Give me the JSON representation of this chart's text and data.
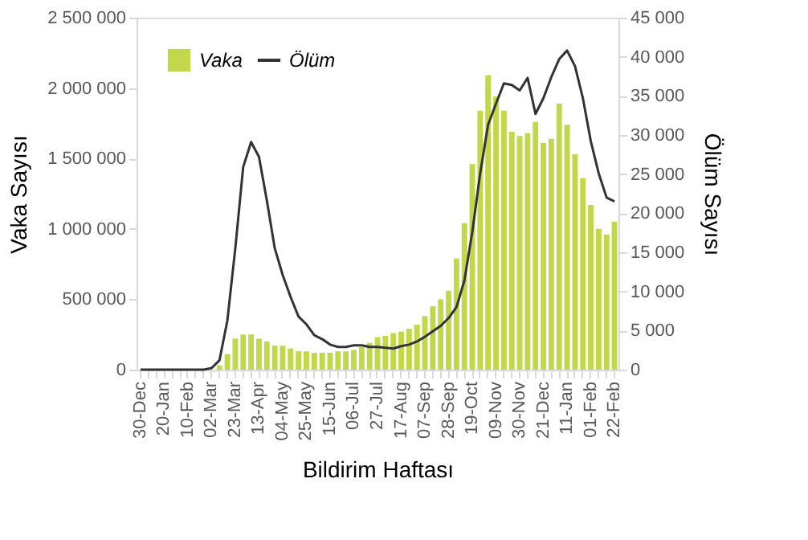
{
  "chart_data": {
    "type": "bar",
    "xlabel": "Bildirim Haftası",
    "ylabel": "Vaka Sayısı",
    "y2label": "Ölüm Sayısı",
    "categories": [
      "30-Dec",
      null,
      null,
      "20-Jan",
      null,
      null,
      "10-Feb",
      null,
      null,
      "02-Mar",
      null,
      null,
      "23-Mar",
      null,
      null,
      "13-Apr",
      null,
      null,
      "04-May",
      null,
      null,
      "25-May",
      null,
      null,
      "15-Jun",
      null,
      null,
      "06-Jul",
      null,
      null,
      "27-Jul",
      null,
      null,
      "17-Aug",
      null,
      null,
      "07-Sep",
      null,
      null,
      "28-Sep",
      null,
      null,
      "19-Oct",
      null,
      null,
      "09-Nov",
      null,
      null,
      "30-Nov",
      null,
      null,
      "21-Dec",
      null,
      null,
      "11-Jan",
      null,
      null,
      "01-Feb",
      null,
      null,
      "22-Feb"
    ],
    "series": [
      {
        "name": "Vaka",
        "color": "#c2d84a",
        "values": [
          0,
          0,
          0,
          0,
          0,
          0,
          0,
          0,
          0,
          0,
          30000,
          110000,
          220000,
          250000,
          250000,
          220000,
          200000,
          170000,
          170000,
          150000,
          130000,
          130000,
          120000,
          120000,
          120000,
          130000,
          130000,
          140000,
          160000,
          190000,
          230000,
          240000,
          260000,
          270000,
          290000,
          320000,
          380000,
          450000,
          500000,
          560000,
          790000,
          1040000,
          1460000,
          1840000,
          2090000,
          1940000,
          1840000,
          1690000,
          1660000,
          1680000,
          1760000,
          1610000,
          1640000,
          1890000,
          1740000,
          1530000,
          1360000,
          1170000,
          1000000,
          960000,
          1050000
        ]
      },
      {
        "name": "Ölüm",
        "type": "line",
        "axis": "y2",
        "color": "#333333",
        "values": [
          0,
          0,
          0,
          0,
          0,
          0,
          0,
          0,
          0,
          200,
          1200,
          6300,
          15500,
          25900,
          29100,
          27200,
          21600,
          15500,
          12100,
          9300,
          6800,
          5800,
          4400,
          3900,
          3200,
          2900,
          2900,
          3100,
          3100,
          2900,
          2900,
          2800,
          2700,
          3000,
          3200,
          3600,
          4200,
          4900,
          5600,
          6600,
          8000,
          11400,
          17600,
          25100,
          31300,
          34000,
          36600,
          36400,
          35700,
          37300,
          32700,
          34700,
          37400,
          39700,
          40800,
          38800,
          34700,
          29200,
          25100,
          22000,
          21500
        ]
      }
    ],
    "ylim": [
      0,
      2500000
    ],
    "yticks": [
      0,
      {
        "value": 500000,
        "label": "500 000"
      },
      {
        "value": 1000000,
        "label": "1 000 000"
      },
      {
        "value": 1500000,
        "label": "1 500 000"
      },
      {
        "value": 2000000,
        "label": "2 000 000"
      },
      {
        "value": 2500000,
        "label": "2 500 000"
      }
    ],
    "y2lim": [
      0,
      45000
    ],
    "y2ticks": [
      0,
      {
        "value": 5000,
        "label": "5 000"
      },
      {
        "value": 10000,
        "label": "10 000"
      },
      {
        "value": 15000,
        "label": "15 000"
      },
      {
        "value": 20000,
        "label": "20 000"
      },
      {
        "value": 25000,
        "label": "25 000"
      },
      {
        "value": 30000,
        "label": "30 000"
      },
      {
        "value": 35000,
        "label": "35 000"
      },
      {
        "value": 40000,
        "label": "40 000"
      },
      {
        "value": 45000,
        "label": "45 000"
      }
    ],
    "legend": "top left",
    "grid": false
  }
}
